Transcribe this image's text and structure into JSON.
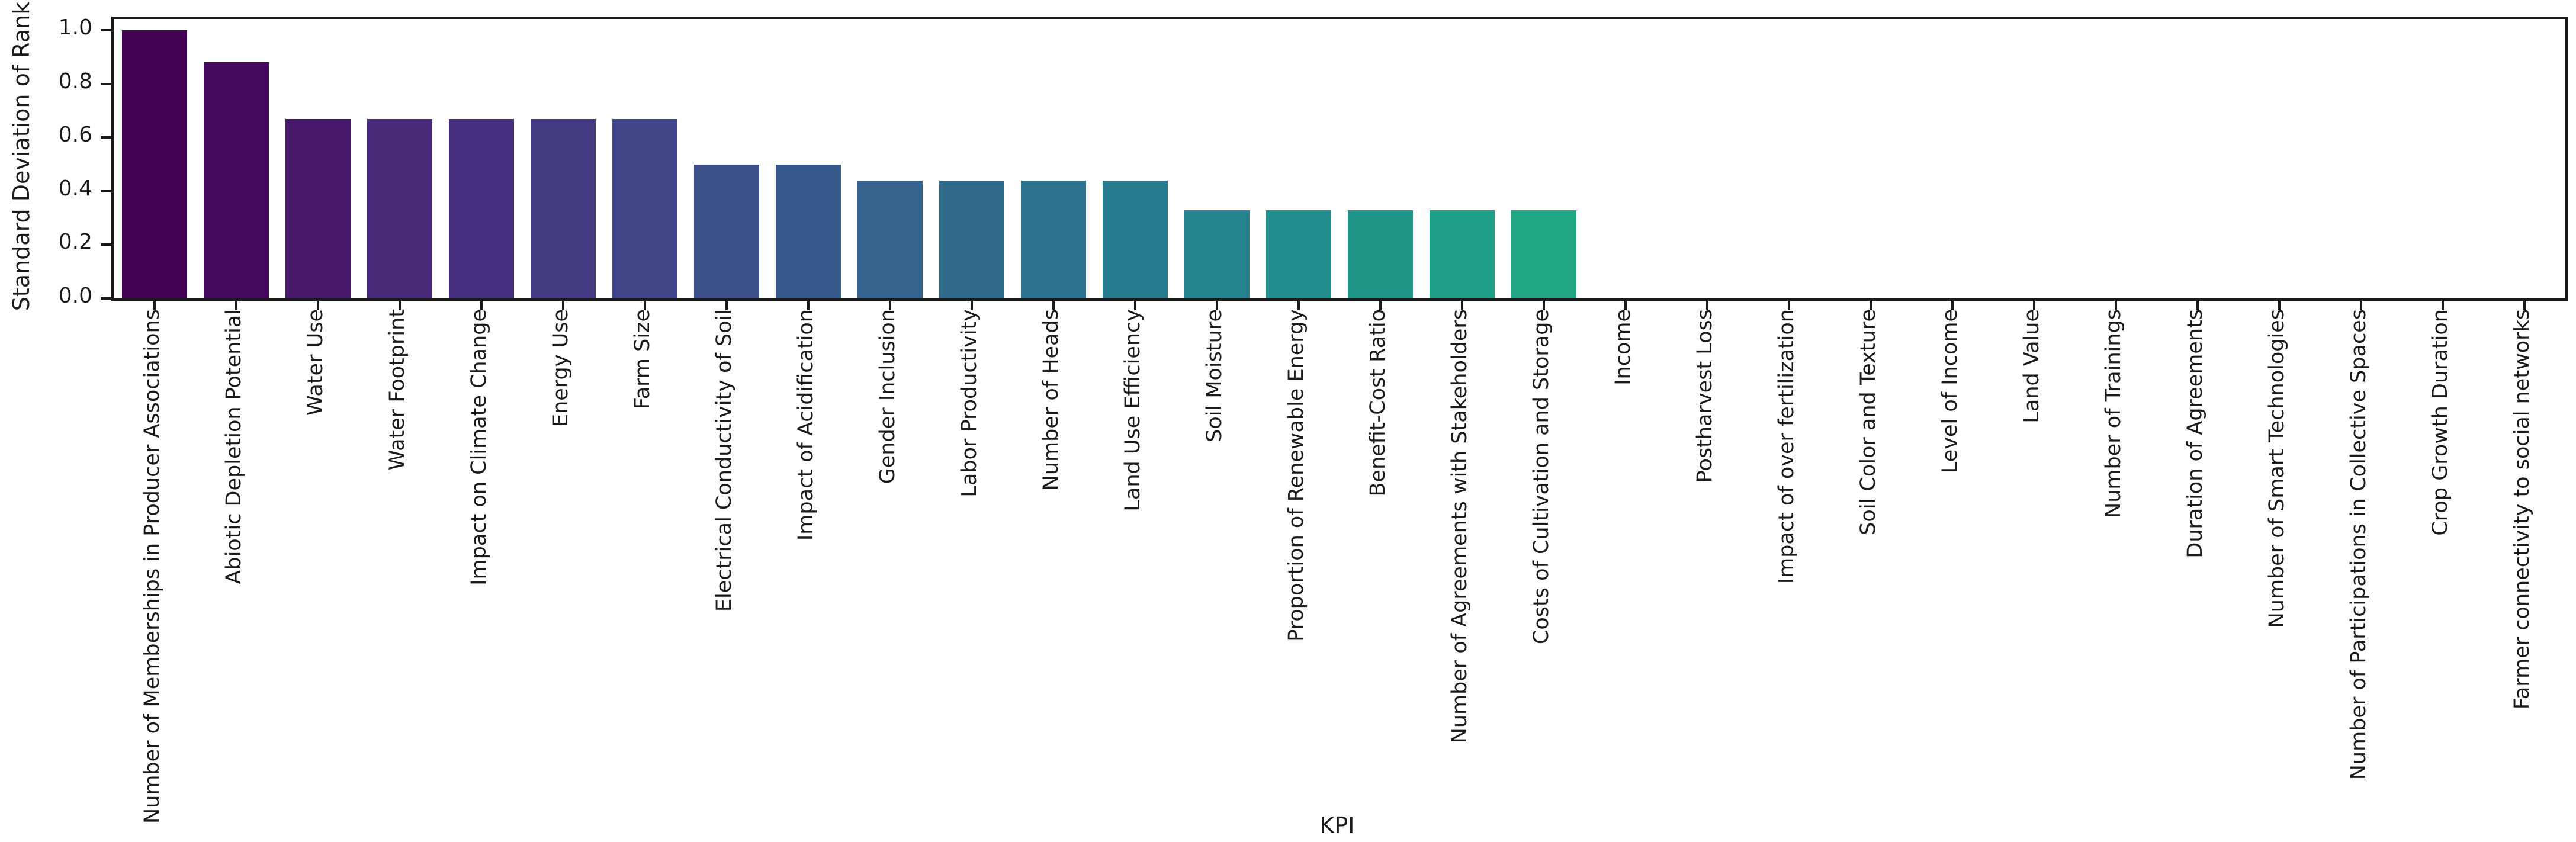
{
  "chart_data": {
    "type": "bar",
    "title": "",
    "xlabel": "KPI",
    "ylabel": "Standard Deviation of Rank",
    "categories": [
      "Number of Memberships in Producer Associations",
      "Abiotic Depletion Potential",
      "Water Use",
      "Water Footprint",
      "Impact on Climate Change",
      "Energy Use",
      "Farm Size",
      "Electrical Conductivity of Soil",
      "Impact of Acidification",
      "Gender Inclusion",
      "Labor Productivity",
      "Number of Heads",
      "Land Use Efficiency",
      "Soil Moisture",
      "Proportion of Renewable Energy",
      "Benefit-Cost Ratio",
      "Number of Agreements with Stakeholders",
      "Costs of Cultivation and Storage",
      "Income",
      "Postharvest Loss",
      "Impact of over fertilization",
      "Soil Color and Texture",
      "Level of Income",
      "Land Value",
      "Number of Trainings",
      "Duration of Agreements",
      "Number of Smart Technologies",
      "Number of Participations in Collective Spaces",
      "Crop Growth Duration",
      "Farmer connectivity to social networks"
    ],
    "values": [
      1.0,
      0.88,
      0.67,
      0.67,
      0.67,
      0.67,
      0.67,
      0.5,
      0.5,
      0.44,
      0.44,
      0.44,
      0.44,
      0.33,
      0.33,
      0.33,
      0.33,
      0.33,
      0,
      0,
      0,
      0,
      0,
      0,
      0,
      0,
      0,
      0,
      0,
      0
    ],
    "bar_colors": [
      "#440154",
      "#460B5E",
      "#47196B",
      "#482978",
      "#46307D",
      "#443A82",
      "#404688",
      "#3C508A",
      "#38598C",
      "#34628D",
      "#306B8E",
      "#2B738E",
      "#287B8E",
      "#25848E",
      "#228D8D",
      "#20968B",
      "#1F9E89",
      "#21A585",
      "#29AD80",
      "#35B479",
      "#40BC72",
      "#51C368",
      "#64C95E",
      "#76D053",
      "#8CD545",
      "#A4DA36",
      "#BBDE27",
      "#D1E126",
      "#E7E426",
      "#FDE725"
    ],
    "palette": "viridis",
    "ylim": [
      0,
      1.042
    ],
    "yticks": [
      0.0,
      0.2,
      0.4,
      0.6,
      0.8,
      1.0
    ],
    "ytick_labels": [
      "0.0",
      "0.2",
      "0.4",
      "0.6",
      "0.8",
      "1.0"
    ],
    "grid": false,
    "legend_position": "none",
    "axis_color": "#1a1a1a"
  }
}
